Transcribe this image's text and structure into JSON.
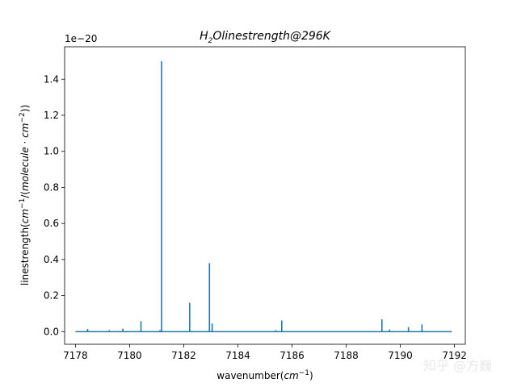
{
  "chart_data": {
    "type": "line",
    "title": "H2Olinestrength@296K",
    "xlabel": "wavenumber(cm^-1)",
    "ylabel": "linestrength(cm^-1/(molecule·cm^-2))",
    "y_offset_text": "1e−20",
    "xlim": [
      7177.6,
      7192.4
    ],
    "ylim": [
      -0.07,
      1.58
    ],
    "x_ticks": [
      7178,
      7180,
      7182,
      7184,
      7186,
      7188,
      7190,
      7192
    ],
    "x_tick_labels": [
      "7178",
      "7180",
      "7182",
      "7184",
      "7186",
      "7188",
      "7190",
      "7192"
    ],
    "y_ticks": [
      0.0,
      0.2,
      0.4,
      0.6,
      0.8,
      1.0,
      1.2,
      1.4
    ],
    "y_tick_labels": [
      "0.0",
      "0.2",
      "0.4",
      "0.6",
      "0.8",
      "1.0",
      "1.2",
      "1.4"
    ],
    "grid": false,
    "line_color": "#1f77b4",
    "baseline_x_range": [
      7178.0,
      7191.9
    ],
    "series": [
      {
        "peaks": [
          {
            "x": 7178.45,
            "y": 0.015
          },
          {
            "x": 7179.25,
            "y": 0.008
          },
          {
            "x": 7179.75,
            "y": 0.017
          },
          {
            "x": 7180.42,
            "y": 0.058
          },
          {
            "x": 7181.12,
            "y": 0.008
          },
          {
            "x": 7181.18,
            "y": 1.5
          },
          {
            "x": 7182.22,
            "y": 0.16
          },
          {
            "x": 7182.95,
            "y": 0.38
          },
          {
            "x": 7183.05,
            "y": 0.045
          },
          {
            "x": 7185.4,
            "y": 0.008
          },
          {
            "x": 7185.62,
            "y": 0.062
          },
          {
            "x": 7189.32,
            "y": 0.068
          },
          {
            "x": 7189.6,
            "y": 0.012
          },
          {
            "x": 7190.3,
            "y": 0.025
          },
          {
            "x": 7190.8,
            "y": 0.04
          }
        ]
      }
    ]
  },
  "watermark": "知乎 @方巍"
}
